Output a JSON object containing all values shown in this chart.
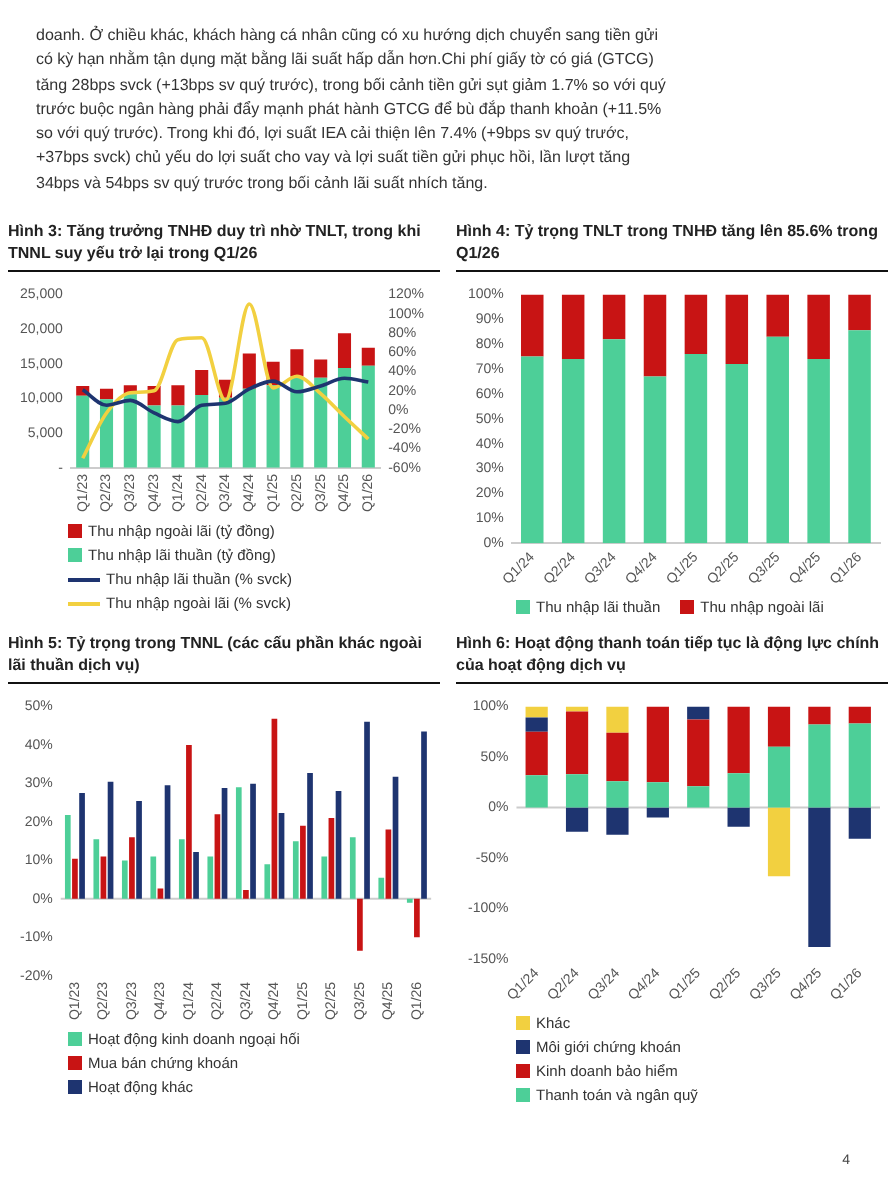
{
  "chart_data": [
    {
      "type": "other",
      "annotations": [
        "doanh. Ở chiều khác, khách hàng cá nhân cũng có xu hướng dịch chuyển sang tiền gửi có kỳ hạn nhằm tận dụng mặt bằng lãi suất hấp dẫn hơn.Chi phí giấy tờ có giá (GTCG) tăng 28bps svck (+13bps sv quý trước), trong bối cảnh tiền gửi sụt giảm 1.7% so với quý trước buộc ngân hàng phải đẩy mạnh phát hành GTCG để bù đắp thanh khoản (+11.5% so với quý trước). Trong khi đó, lợi suất IEA cải thiện lên 7.4% (+9bps sv quý trước, +37bps svck) chủ yếu do lợi suất cho vay và lợi suất tiền gửi phục hồi, lần lượt tăng 34bps và 54bps sv quý trước trong bối cảnh lãi suất nhích tăng.",
        "4"
      ]
    },
    {
      "type": "bar",
      "title": "Hình 3: Tăng trưởng TNHĐ duy trì nhờ TNLT, trong khi TNNL suy yếu trở lại trong Q1/26",
      "stacked": true,
      "legend": "bottom",
      "marker": "none",
      "categories": [
        "Q1/23",
        "Q2/23",
        "Q3/23",
        "Q4/23",
        "Q1/24",
        "Q2/24",
        "Q3/24",
        "Q4/24",
        "Q1/25",
        "Q2/25",
        "Q3/25",
        "Q4/25",
        "Q1/26"
      ],
      "series": [
        {
          "name": "Thu nhập lãi thuần (tỷ đồng)",
          "color": "#4dcf98",
          "values": [
            10400,
            9900,
            10600,
            9000,
            9000,
            10500,
            10100,
            11400,
            11900,
            13200,
            13000,
            14400,
            14700
          ]
        },
        {
          "name": "Thu nhập ngoài lãi (tỷ đồng)",
          "color": "#c81414",
          "values": [
            1400,
            1500,
            1300,
            2800,
            2900,
            3600,
            2600,
            5100,
            3400,
            3900,
            2600,
            5000,
            2600
          ]
        },
        {
          "name": "Thu nhập lãi thuần (% svck)",
          "type": "line",
          "axis": "y2",
          "color": "#1e3470",
          "values": [
            21,
            5,
            10,
            -3,
            -12,
            5,
            7,
            22,
            30,
            19,
            25,
            33,
            29
          ]
        },
        {
          "name": "Thu nhập ngoài lãi (% svck)",
          "type": "line",
          "axis": "y2",
          "color": "#f2d040",
          "values": [
            -50,
            -3,
            18,
            20,
            73,
            75,
            10,
            110,
            23,
            35,
            17,
            -7,
            -30
          ]
        }
      ],
      "ylim": [
        0,
        25000
      ],
      "yticks": [
        {
          "value": 0,
          "label": "-"
        },
        {
          "value": 5000,
          "label": "5,000"
        },
        {
          "value": 10000,
          "label": "10,000"
        },
        {
          "value": 15000,
          "label": "15,000"
        },
        {
          "value": 20000,
          "label": "20,000"
        },
        {
          "value": 25000,
          "label": "25,000"
        }
      ],
      "y2lim": [
        -60,
        120
      ],
      "y2ticks": [
        {
          "value": -60,
          "label": "-60%"
        },
        {
          "value": -40,
          "label": "-40%"
        },
        {
          "value": -20,
          "label": "-20%"
        },
        {
          "value": 0,
          "label": "0%"
        },
        {
          "value": 20,
          "label": "20%"
        },
        {
          "value": 40,
          "label": "40%"
        },
        {
          "value": 60,
          "label": "60%"
        },
        {
          "value": 80,
          "label": "80%"
        },
        {
          "value": 100,
          "label": "100%"
        },
        {
          "value": 120,
          "label": "120%"
        }
      ]
    },
    {
      "type": "bar",
      "title": "Hình 4: Tỷ trọng TNLT trong TNHĐ tăng lên 85.6% trong Q1/26",
      "stacked": true,
      "legend": "bottom",
      "categories": [
        "Q1/24",
        "Q2/24",
        "Q3/24",
        "Q4/24",
        "Q1/25",
        "Q2/25",
        "Q3/25",
        "Q4/25",
        "Q1/26"
      ],
      "series": [
        {
          "name": "Thu nhập lãi thuần",
          "color": "#4dcf98",
          "values": [
            75,
            74,
            82,
            67,
            76,
            72,
            83,
            74,
            85.6
          ]
        },
        {
          "name": "Thu nhập ngoài lãi",
          "color": "#c81414",
          "values": [
            25,
            26,
            18,
            33,
            24,
            28,
            17,
            26,
            14.4
          ]
        }
      ],
      "ylim": [
        0,
        100
      ],
      "yticks": [
        {
          "value": 0,
          "label": "0%"
        },
        {
          "value": 10,
          "label": "10%"
        },
        {
          "value": 20,
          "label": "20%"
        },
        {
          "value": 30,
          "label": "30%"
        },
        {
          "value": 40,
          "label": "40%"
        },
        {
          "value": 50,
          "label": "50%"
        },
        {
          "value": 60,
          "label": "60%"
        },
        {
          "value": 70,
          "label": "70%"
        },
        {
          "value": 80,
          "label": "80%"
        },
        {
          "value": 90,
          "label": "90%"
        },
        {
          "value": 100,
          "label": "100%"
        }
      ]
    },
    {
      "type": "bar",
      "title": "Hình 5: Tỷ trọng trong TNNL (các cấu phần khác ngoài lãi thuần dịch vụ)",
      "legend": "bottom",
      "categories": [
        "Q1/23",
        "Q2/23",
        "Q3/23",
        "Q4/23",
        "Q1/24",
        "Q2/24",
        "Q3/24",
        "Q4/24",
        "Q1/25",
        "Q2/25",
        "Q3/25",
        "Q4/25",
        "Q1/26"
      ],
      "series": [
        {
          "name": "Hoạt động kinh doanh ngoại hối",
          "color": "#4dcf98",
          "values": [
            21.8,
            15.5,
            10,
            11,
            15.5,
            11,
            29,
            9,
            15,
            11,
            16,
            5.5,
            -1
          ]
        },
        {
          "name": "Mua bán chứng khoán",
          "color": "#c81414",
          "values": [
            10.4,
            11,
            16,
            2.7,
            40,
            22,
            2.3,
            46.8,
            19,
            21,
            -13.5,
            18,
            -10
          ]
        },
        {
          "name": "Hoạt động khác",
          "color": "#1e3470",
          "values": [
            27.5,
            30.4,
            25.4,
            29.5,
            12.2,
            28.8,
            29.9,
            22.3,
            32.7,
            28,
            46,
            31.7,
            43.5
          ]
        }
      ],
      "ylim": [
        -20,
        50
      ],
      "yticks": [
        {
          "value": -20,
          "label": "-20%"
        },
        {
          "value": -10,
          "label": "-10%"
        },
        {
          "value": 0,
          "label": "0%"
        },
        {
          "value": 10,
          "label": "10%"
        },
        {
          "value": 20,
          "label": "20%"
        },
        {
          "value": 30,
          "label": "30%"
        },
        {
          "value": 40,
          "label": "40%"
        },
        {
          "value": 50,
          "label": "50%"
        }
      ]
    },
    {
      "type": "bar",
      "title": "Hình 6: Hoạt động thanh toán tiếp tục là động lực chính của hoạt động dịch vụ",
      "stacked": true,
      "legend": "bottom",
      "categories": [
        "Q1/24",
        "Q2/24",
        "Q3/24",
        "Q4/24",
        "Q1/25",
        "Q2/25",
        "Q3/25",
        "Q4/25",
        "Q1/26"
      ],
      "series": [
        {
          "name": "Thanh toán và ngân quỹ",
          "color": "#4dcf98",
          "values": [
            32,
            33,
            26,
            25,
            21,
            34,
            60,
            82,
            83
          ]
        },
        {
          "name": "Kinh doanh bảo hiểm",
          "color": "#c81414",
          "values": [
            43,
            62,
            48,
            75,
            66,
            66,
            40,
            18,
            17
          ]
        },
        {
          "name": "Môi giới chứng khoán",
          "color": "#1e3470",
          "values": [
            14,
            -24,
            -27,
            -10,
            13,
            -19,
            null,
            -138,
            -31
          ]
        },
        {
          "name": "Khác",
          "color": "#f2d040",
          "values": [
            11,
            5,
            26,
            null,
            null,
            null,
            -68,
            null,
            null
          ]
        }
      ],
      "ylim": [
        -150,
        100
      ],
      "yticks": [
        {
          "value": -150,
          "label": "-150%"
        },
        {
          "value": -100,
          "label": "-100%"
        },
        {
          "value": -50,
          "label": "-50%"
        },
        {
          "value": 0,
          "label": "0%"
        },
        {
          "value": 50,
          "label": "50%"
        },
        {
          "value": 100,
          "label": "100%"
        }
      ]
    }
  ]
}
